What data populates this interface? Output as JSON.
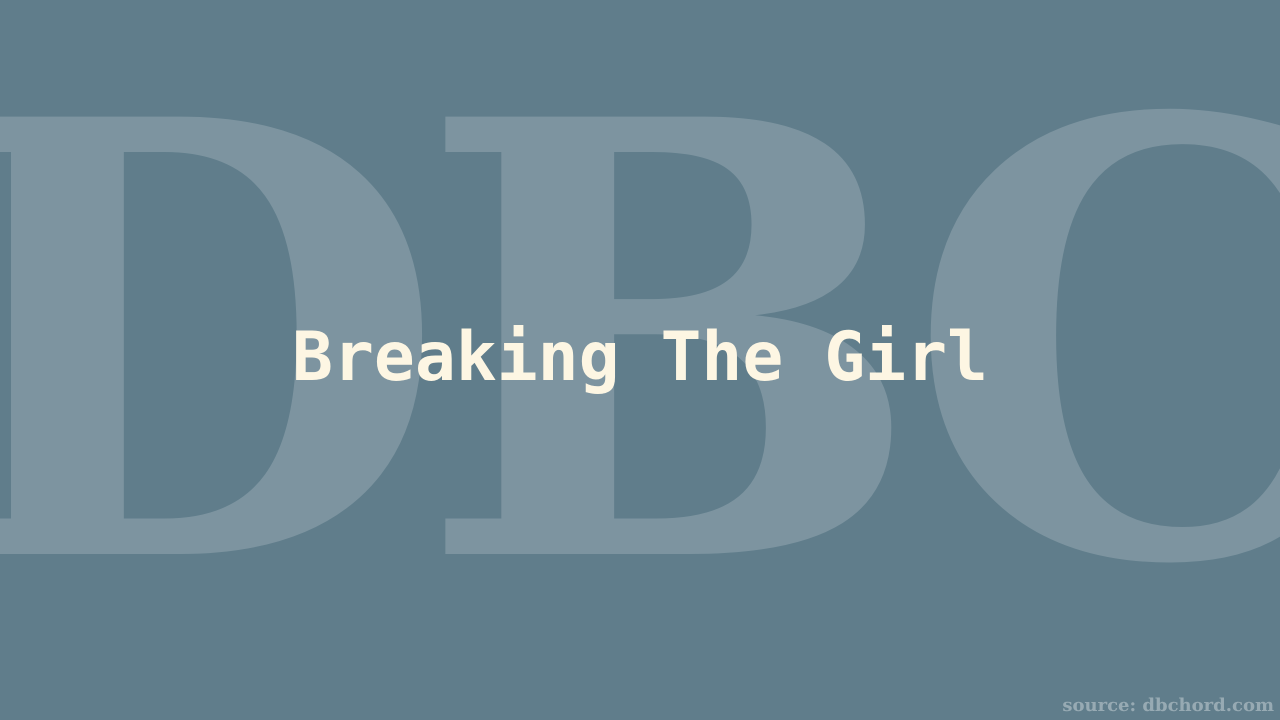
{
  "watermark": {
    "text": "DBC"
  },
  "title": "Breaking The Girl",
  "source": "source: dbchord.com",
  "colors": {
    "background": "#607d8b",
    "title": "#fdf6e3",
    "watermark": "#ffffff"
  }
}
